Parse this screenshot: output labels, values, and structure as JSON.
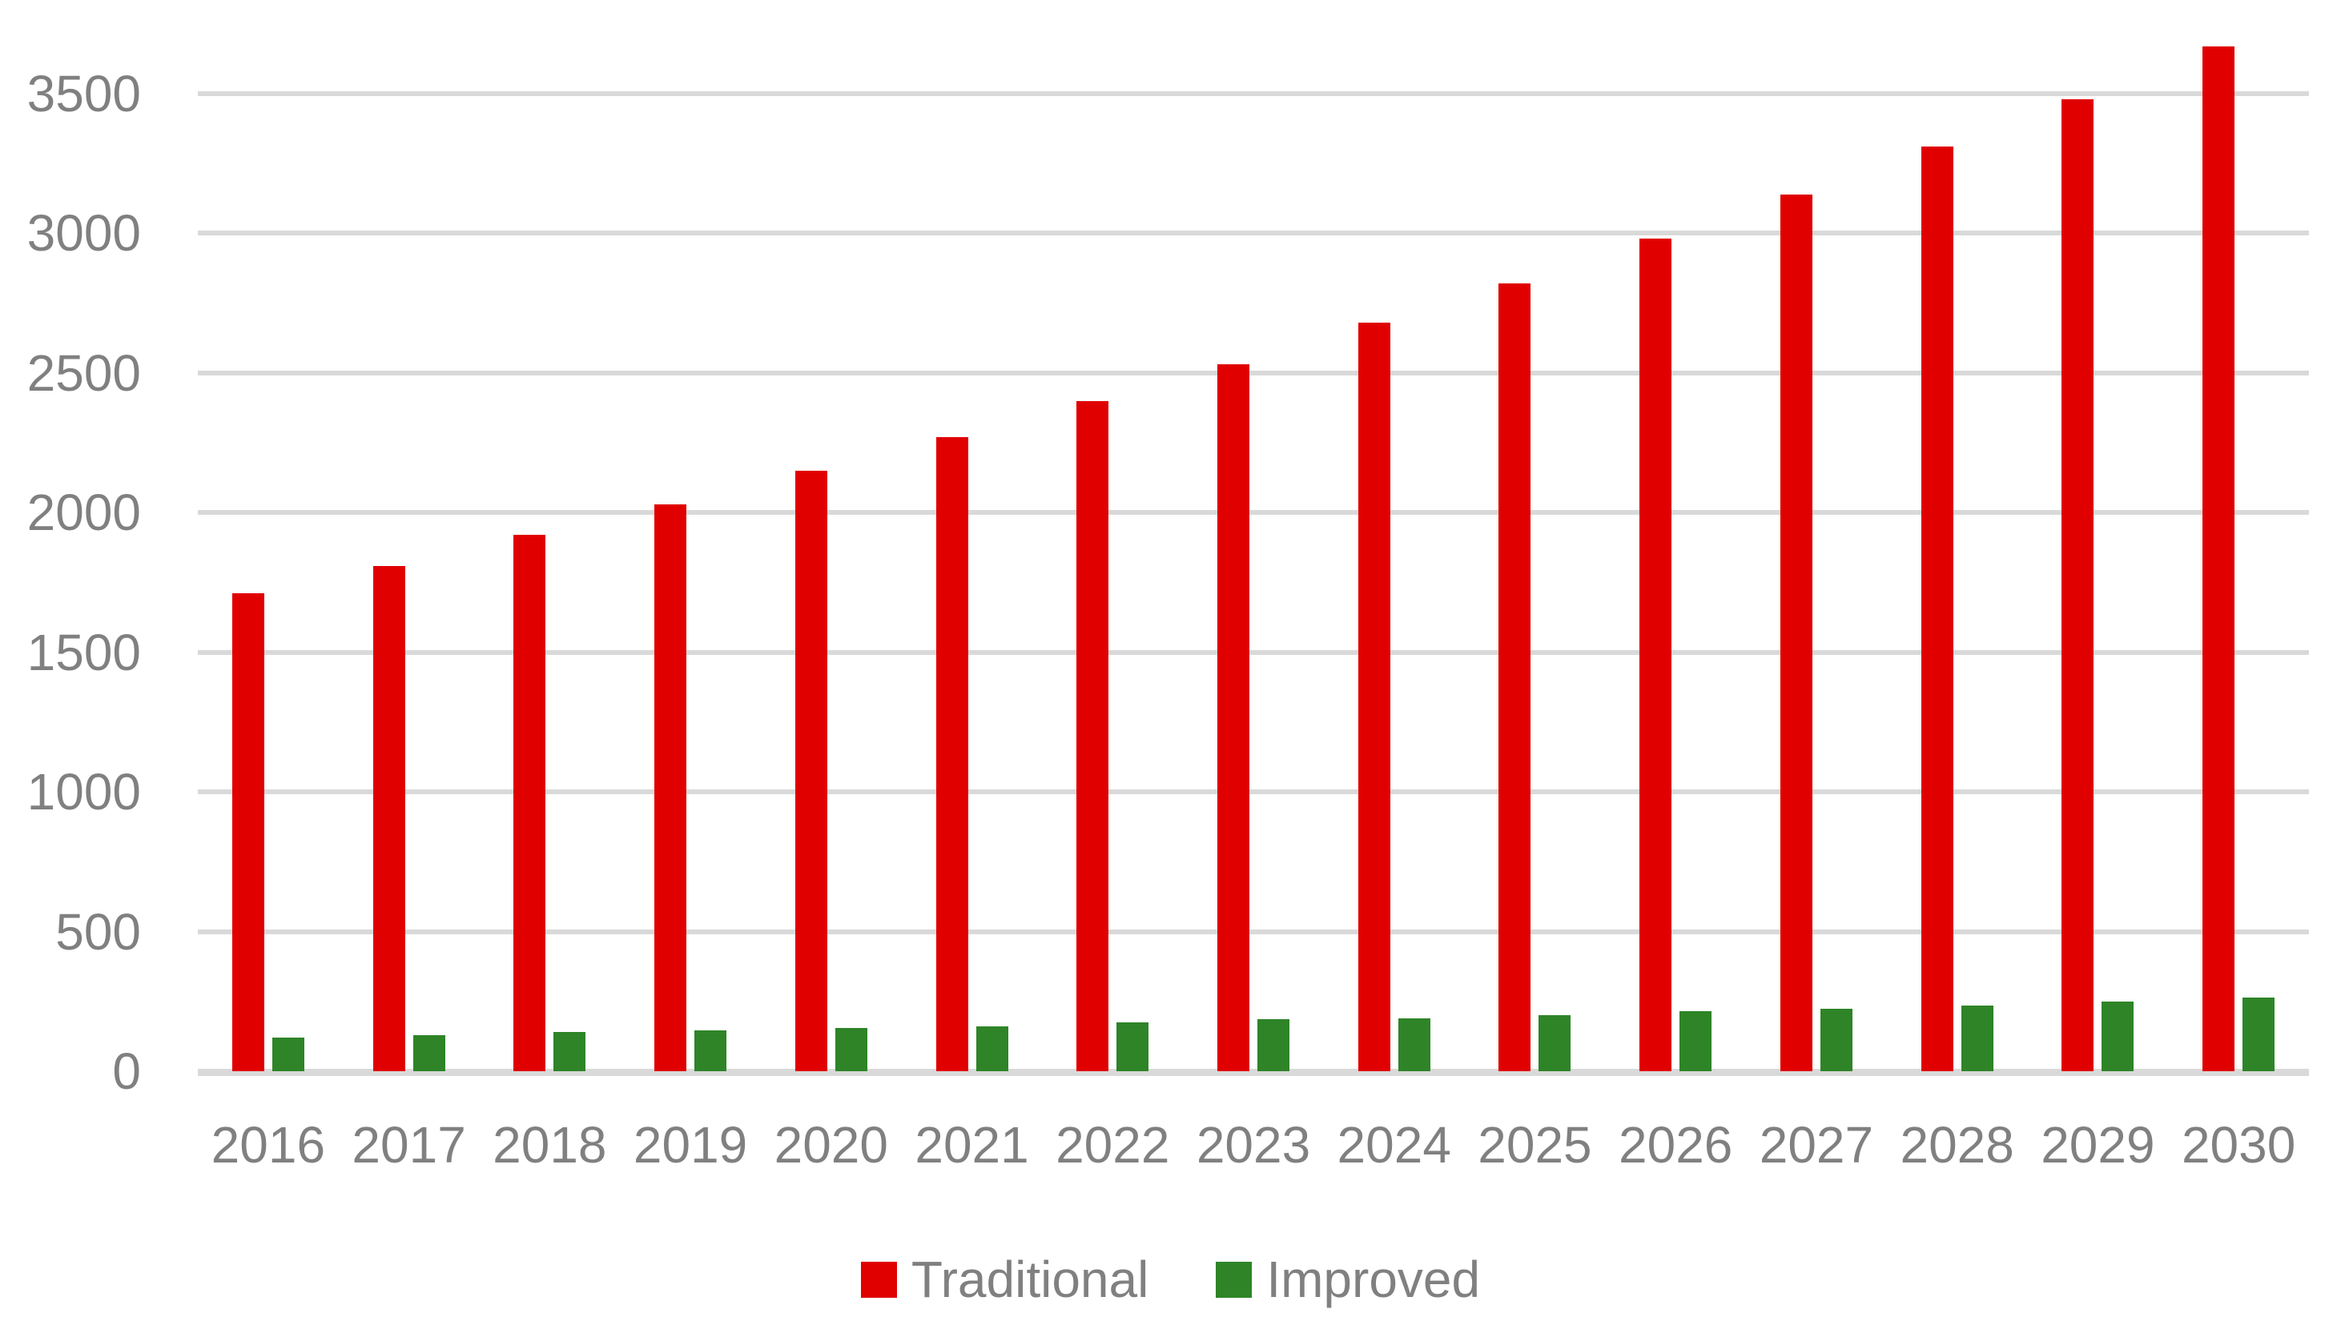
{
  "chart_data": {
    "type": "bar",
    "title": "",
    "xlabel": "",
    "ylabel": "",
    "categories": [
      "2016",
      "2017",
      "2018",
      "2019",
      "2020",
      "2021",
      "2022",
      "2023",
      "2024",
      "2025",
      "2026",
      "2027",
      "2028",
      "2029",
      "2030"
    ],
    "series": [
      {
        "name": "Traditional",
        "color": "#e00000",
        "values": [
          1710,
          1810,
          1920,
          2030,
          2150,
          2270,
          2400,
          2530,
          2680,
          2820,
          2980,
          3140,
          3310,
          3480,
          3670
        ]
      },
      {
        "name": "Improved",
        "color": "#2e8427",
        "values": [
          120,
          130,
          140,
          145,
          155,
          160,
          175,
          185,
          190,
          200,
          215,
          225,
          235,
          250,
          265
        ]
      }
    ],
    "ylim": [
      0,
      3500
    ],
    "yticks": [
      0,
      500,
      1000,
      1500,
      2000,
      2500,
      3000,
      3500
    ],
    "grid": true,
    "legend_position": "bottom",
    "gridline_color": "#d9d9d9",
    "zero_line_color": "#d9d9d9",
    "axis_text_color": "#808080",
    "background_color": "#ffffff"
  }
}
